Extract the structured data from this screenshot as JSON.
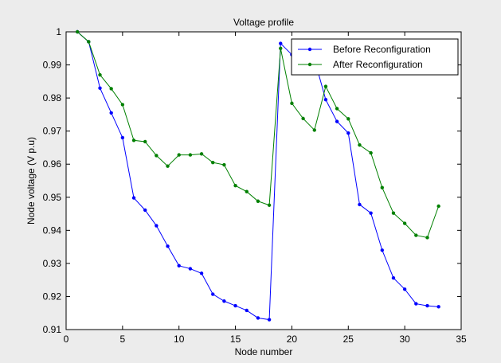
{
  "chart_data": {
    "type": "line",
    "title": "Voltage profile",
    "xlabel": "Node number",
    "ylabel": "Node voltage (V p.u)",
    "xlim": [
      0,
      35
    ],
    "ylim": [
      0.91,
      1.0
    ],
    "xticks": [
      0,
      5,
      10,
      15,
      20,
      25,
      30,
      35
    ],
    "yticks": [
      0.91,
      0.92,
      0.93,
      0.94,
      0.95,
      0.96,
      0.97,
      0.98,
      0.99,
      1.0
    ],
    "xtick_labels": [
      "0",
      "5",
      "10",
      "15",
      "20",
      "25",
      "30",
      "35"
    ],
    "ytick_labels": [
      "0.91",
      "0.92",
      "0.93",
      "0.94",
      "0.95",
      "0.96",
      "0.97",
      "0.98",
      "0.99",
      "1"
    ],
    "grid": false,
    "legend_position": "top-right",
    "x": [
      1,
      2,
      3,
      4,
      5,
      6,
      7,
      8,
      9,
      10,
      11,
      12,
      13,
      14,
      15,
      16,
      17,
      18,
      19,
      20,
      21,
      22,
      23,
      24,
      25,
      26,
      27,
      28,
      29,
      30,
      31,
      32,
      33
    ],
    "series": [
      {
        "name": "Before Reconfiguration",
        "color": "#0000ff",
        "values": [
          1.0,
          0.997,
          0.983,
          0.9755,
          0.968,
          0.9498,
          0.9461,
          0.9414,
          0.9352,
          0.9293,
          0.9284,
          0.927,
          0.9207,
          0.9186,
          0.9172,
          0.9158,
          0.9135,
          0.913,
          0.9965,
          0.9931,
          0.9924,
          0.9918,
          0.9795,
          0.9729,
          0.9694,
          0.9478,
          0.9452,
          0.934,
          0.9256,
          0.9222,
          0.9178,
          0.9172,
          0.9169
        ]
      },
      {
        "name": "After Reconfiguration",
        "color": "#008000",
        "values": [
          1.0,
          0.997,
          0.987,
          0.9828,
          0.978,
          0.9672,
          0.9668,
          0.9626,
          0.9594,
          0.9628,
          0.9628,
          0.9631,
          0.9605,
          0.9598,
          0.9535,
          0.9517,
          0.9488,
          0.9476,
          0.995,
          0.9784,
          0.9738,
          0.9703,
          0.9835,
          0.9768,
          0.9737,
          0.9658,
          0.9634,
          0.9529,
          0.9452,
          0.9421,
          0.9385,
          0.9378,
          0.9473
        ]
      }
    ]
  }
}
